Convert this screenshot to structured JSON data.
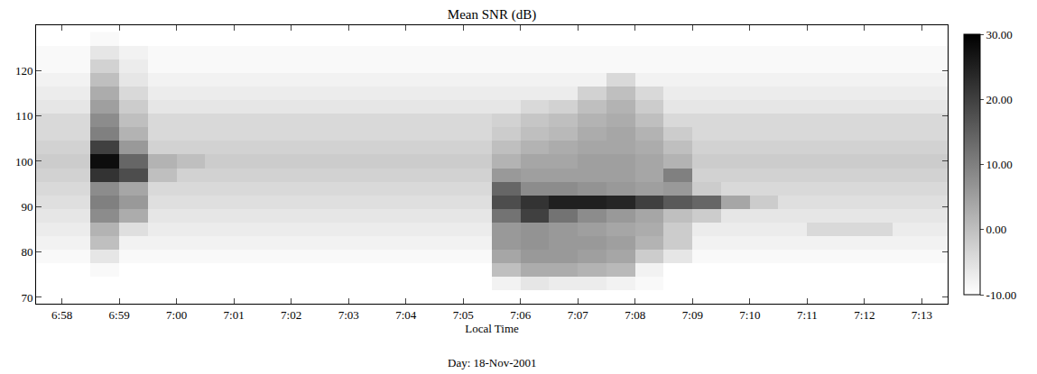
{
  "chart_data": {
    "type": "heatmap",
    "title": "Mean SNR (dB)",
    "x_label": "Local Time",
    "annotation": "Day: 18-Nov-2001",
    "grid": false,
    "colorscale": [
      "#ffffff",
      "#000000"
    ],
    "xlim": [
      57.55,
      73.45
    ],
    "ylim": [
      68.6,
      130
    ],
    "xticks": [
      {
        "value": 58,
        "label": "6:58"
      },
      {
        "value": 59,
        "label": "6:59"
      },
      {
        "value": 60,
        "label": "7:00"
      },
      {
        "value": 61,
        "label": "7:01"
      },
      {
        "value": 62,
        "label": "7:02"
      },
      {
        "value": 63,
        "label": "7:03"
      },
      {
        "value": 64,
        "label": "7:04"
      },
      {
        "value": 65,
        "label": "7:05"
      },
      {
        "value": 66,
        "label": "7:06"
      },
      {
        "value": 67,
        "label": "7:07"
      },
      {
        "value": 68,
        "label": "7:08"
      },
      {
        "value": 69,
        "label": "7:09"
      },
      {
        "value": 70,
        "label": "7:10"
      },
      {
        "value": 71,
        "label": "7:11"
      },
      {
        "value": 72,
        "label": "7:12"
      },
      {
        "value": 73,
        "label": "7:13"
      }
    ],
    "yticks": [
      70,
      80,
      90,
      100,
      110,
      120
    ],
    "colorbar": {
      "range": [
        -10,
        30
      ],
      "ticks": [
        {
          "value": -10,
          "label": "-10.00"
        },
        {
          "value": 0,
          "label": "0.00"
        },
        {
          "value": 10,
          "label": "10.00"
        },
        {
          "value": 20,
          "label": "20.00"
        },
        {
          "value": 30,
          "label": "30.00"
        }
      ]
    },
    "x": [
      57.75,
      58.25,
      58.75,
      59.25,
      59.75,
      60.25,
      60.75,
      61.25,
      61.75,
      62.25,
      62.75,
      63.25,
      63.75,
      64.25,
      64.75,
      65.25,
      65.75,
      66.25,
      66.75,
      67.25,
      67.75,
      68.25,
      68.75,
      69.25,
      69.75,
      70.25,
      70.75,
      71.25,
      71.75,
      72.25,
      72.75,
      73.25
    ],
    "y": [
      70,
      73,
      76,
      79,
      82,
      85,
      88,
      91,
      94,
      97,
      100,
      103,
      106,
      109,
      112,
      115,
      118,
      121,
      124,
      127
    ],
    "z": [
      [
        -10,
        -10,
        -10,
        -10,
        -10,
        -10,
        -10,
        -10,
        -10,
        -10,
        -10,
        -10,
        -10,
        -10,
        -10,
        -10,
        -10,
        -10,
        -10,
        -10,
        -10,
        -10,
        -10,
        -10,
        -10,
        -10,
        -10,
        -10,
        -10,
        -10,
        -10,
        -10
      ],
      [
        -10,
        -10,
        -10,
        -10,
        -10,
        -10,
        -10,
        -10,
        -10,
        -10,
        -10,
        -10,
        -10,
        -10,
        -10,
        -10,
        -8,
        -6,
        -7,
        -7,
        -8,
        -9,
        -10,
        -10,
        -10,
        -10,
        -10,
        -10,
        -10,
        -10,
        -10,
        -10
      ],
      [
        -10,
        -10,
        -9,
        -10,
        -10,
        -10,
        -10,
        -10,
        -10,
        -10,
        -10,
        -10,
        -10,
        -10,
        -10,
        -10,
        0,
        3,
        3,
        2,
        1,
        -8,
        -10,
        -10,
        -10,
        -10,
        -10,
        -10,
        -10,
        -10,
        -10,
        -10
      ],
      [
        -9,
        -9,
        -6,
        -9,
        -9,
        -9,
        -9,
        -9,
        -9,
        -9,
        -9,
        -9,
        -9,
        -9,
        -9,
        -9,
        4,
        6,
        6,
        5,
        4,
        -2,
        -6,
        -9,
        -9,
        -9,
        -9,
        -9,
        -9,
        -9,
        -9,
        -9
      ],
      [
        -8,
        -8,
        0,
        -8,
        -8,
        -8,
        -8,
        -8,
        -8,
        -8,
        -8,
        -8,
        -8,
        -8,
        -8,
        -8,
        6,
        7,
        6,
        6,
        5,
        2,
        -2,
        -8,
        -8,
        -8,
        -8,
        -8,
        -8,
        -8,
        -8,
        -8
      ],
      [
        -7,
        -7,
        2,
        -5,
        -7,
        -7,
        -7,
        -7,
        -7,
        -7,
        -7,
        -7,
        -7,
        -7,
        -7,
        -7,
        6,
        7,
        6,
        5,
        4,
        3,
        -2,
        -7,
        -7,
        -7,
        -7,
        -4,
        -4,
        -4,
        -7,
        -7
      ],
      [
        -6,
        -6,
        8,
        3,
        -6,
        -6,
        -6,
        -6,
        -6,
        -6,
        -6,
        -6,
        -6,
        -6,
        -6,
        -6,
        12,
        20,
        12,
        8,
        6,
        4,
        0,
        -2,
        -6,
        -6,
        -6,
        -6,
        -6,
        -6,
        -6,
        -6
      ],
      [
        -5,
        -5,
        10,
        6,
        -5,
        -5,
        -5,
        -5,
        -5,
        -5,
        -5,
        -5,
        -5,
        -5,
        -5,
        -5,
        18,
        22,
        25,
        25,
        24,
        20,
        16,
        14,
        4,
        -2,
        -5,
        -5,
        -5,
        -5,
        -5,
        -5
      ],
      [
        -4,
        -4,
        8,
        4,
        -4,
        -4,
        -4,
        -4,
        -4,
        -4,
        -4,
        -4,
        -4,
        -4,
        -4,
        -4,
        14,
        8,
        8,
        7,
        6,
        5,
        6,
        -2,
        -4,
        -4,
        -4,
        -4,
        -4,
        -4,
        -4,
        -4
      ],
      [
        -3,
        -3,
        22,
        18,
        0,
        -3,
        -3,
        -3,
        -3,
        -3,
        -3,
        -3,
        -3,
        -3,
        -3,
        -3,
        6,
        5,
        5,
        5,
        5,
        4,
        10,
        -3,
        -3,
        -3,
        -3,
        -3,
        -3,
        -3,
        -3,
        -3
      ],
      [
        -2,
        -2,
        28,
        14,
        2,
        0,
        -2,
        -2,
        -2,
        -2,
        -2,
        -2,
        -2,
        -2,
        -2,
        -2,
        2,
        4,
        4,
        5,
        5,
        4,
        2,
        -2,
        -2,
        -2,
        -2,
        -2,
        -2,
        -2,
        -2,
        -2
      ],
      [
        -3,
        -3,
        20,
        6,
        -3,
        -3,
        -3,
        -3,
        -3,
        -3,
        -3,
        -3,
        -3,
        -3,
        -3,
        -3,
        0,
        2,
        3,
        4,
        4,
        3,
        0,
        -3,
        -3,
        -3,
        -3,
        -3,
        -3,
        -3,
        -3,
        -3
      ],
      [
        -4,
        -4,
        10,
        2,
        -4,
        -4,
        -4,
        -4,
        -4,
        -4,
        -4,
        -4,
        -4,
        -4,
        -4,
        -4,
        -2,
        0,
        1,
        3,
        4,
        2,
        -2,
        -4,
        -4,
        -4,
        -4,
        -4,
        -4,
        -4,
        -4,
        -4
      ],
      [
        -4,
        -4,
        8,
        0,
        -4,
        -4,
        -4,
        -4,
        -4,
        -4,
        -4,
        -4,
        -4,
        -4,
        -4,
        -4,
        -3,
        -1,
        0,
        2,
        3,
        0,
        -4,
        -4,
        -4,
        -4,
        -4,
        -4,
        -4,
        -4,
        -4,
        -4
      ],
      [
        -6,
        -6,
        5,
        -2,
        -6,
        -6,
        -6,
        -6,
        -6,
        -6,
        -6,
        -6,
        -6,
        -6,
        -6,
        -6,
        -6,
        -4,
        -3,
        0,
        2,
        -2,
        -6,
        -6,
        -6,
        -6,
        -6,
        -6,
        -6,
        -6,
        -6,
        -6
      ],
      [
        -7,
        -7,
        3,
        -4,
        -7,
        -7,
        -7,
        -7,
        -7,
        -7,
        -7,
        -7,
        -7,
        -7,
        -7,
        -7,
        -7,
        -7,
        -7,
        -3,
        0,
        -4,
        -7,
        -7,
        -7,
        -7,
        -7,
        -7,
        -7,
        -7,
        -7,
        -7
      ],
      [
        -8,
        -8,
        0,
        -6,
        -8,
        -8,
        -8,
        -8,
        -8,
        -8,
        -8,
        -8,
        -8,
        -8,
        -8,
        -8,
        -8,
        -8,
        -8,
        -8,
        -4,
        -8,
        -8,
        -8,
        -8,
        -8,
        -8,
        -8,
        -8,
        -8,
        -8,
        -8
      ],
      [
        -9,
        -9,
        -3,
        -7,
        -9,
        -9,
        -9,
        -9,
        -9,
        -9,
        -9,
        -9,
        -9,
        -9,
        -9,
        -9,
        -9,
        -9,
        -9,
        -9,
        -9,
        -9,
        -9,
        -9,
        -9,
        -9,
        -9,
        -9,
        -9,
        -9,
        -9,
        -9
      ],
      [
        -9,
        -9,
        -6,
        -8,
        -9,
        -9,
        -9,
        -9,
        -9,
        -9,
        -9,
        -9,
        -9,
        -9,
        -9,
        -9,
        -9,
        -9,
        -9,
        -9,
        -9,
        -9,
        -9,
        -9,
        -9,
        -9,
        -9,
        -9,
        -9,
        -9,
        -9,
        -9
      ],
      [
        -10,
        -10,
        -9,
        -10,
        -10,
        -10,
        -10,
        -10,
        -10,
        -10,
        -10,
        -10,
        -10,
        -10,
        -10,
        -10,
        -10,
        -10,
        -10,
        -10,
        -10,
        -10,
        -10,
        -10,
        -10,
        -10,
        -10,
        -10,
        -10,
        -10,
        -10,
        -10
      ]
    ]
  }
}
